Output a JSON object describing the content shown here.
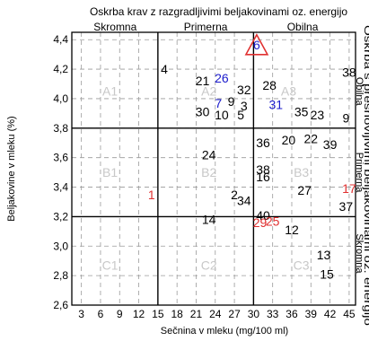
{
  "chart_data": {
    "type": "scatter",
    "title": "Oskrba krav z razgradljivimi beljakovinami oz. energijo",
    "xlabel": "Sečnina v mleku (mg/100 ml)",
    "ylabel": "Beljakovine v mleku (%)",
    "right_label": "Oskrba s presnovljivimi beljakovinami oz. energijo",
    "xlim": [
      1.5,
      46
    ],
    "ylim": [
      2.6,
      4.45
    ],
    "x_ticks": [
      "3",
      "6",
      "9",
      "12",
      "15",
      "18",
      "21",
      "24",
      "27",
      "30",
      "33",
      "36",
      "39",
      "42",
      "45"
    ],
    "y_ticks": [
      "2,6",
      "2,8",
      "3,0",
      "3,2",
      "3,4",
      "3,6",
      "3,8",
      "4,0",
      "4,2",
      "4,4"
    ],
    "column_headers": [
      "Skromna",
      "Primerna",
      "Obilna"
    ],
    "row_headers": [
      "Obilna",
      "Primerna",
      "Skromna"
    ],
    "x_dividers": [
      15,
      30
    ],
    "y_dividers": [
      3.2,
      3.8
    ],
    "zones": [
      {
        "label": "A1",
        "x": 7.5,
        "y": 4.05
      },
      {
        "label": "A2",
        "x": 23,
        "y": 4.05
      },
      {
        "label": "A3",
        "x": 35.5,
        "y": 4.05
      },
      {
        "label": "B1",
        "x": 7.5,
        "y": 3.5
      },
      {
        "label": "B2",
        "x": 23,
        "y": 3.5
      },
      {
        "label": "B3",
        "x": 37.5,
        "y": 3.5
      },
      {
        "label": "C1",
        "x": 7.5,
        "y": 2.87
      },
      {
        "label": "C2",
        "x": 23,
        "y": 2.87
      },
      {
        "label": "C3",
        "x": 37.5,
        "y": 2.87
      }
    ],
    "points": [
      {
        "label": "4",
        "x": 16,
        "y": 4.2,
        "color": "#000000"
      },
      {
        "label": "21",
        "x": 22,
        "y": 4.12,
        "color": "#000000"
      },
      {
        "label": "26",
        "x": 25,
        "y": 4.14,
        "color": "#1a1acc"
      },
      {
        "label": "32",
        "x": 28.5,
        "y": 4.06,
        "color": "#000000"
      },
      {
        "label": "28",
        "x": 32.5,
        "y": 4.09,
        "color": "#000000"
      },
      {
        "label": "38",
        "x": 45,
        "y": 4.18,
        "color": "#000000"
      },
      {
        "label": "7",
        "x": 24.5,
        "y": 3.97,
        "color": "#1a1acc"
      },
      {
        "label": "9",
        "x": 26.5,
        "y": 3.98,
        "color": "#000000"
      },
      {
        "label": "3",
        "x": 28.5,
        "y": 3.95,
        "color": "#000000"
      },
      {
        "label": "31",
        "x": 33.5,
        "y": 3.96,
        "color": "#1a1acc"
      },
      {
        "label": "35",
        "x": 37.5,
        "y": 3.91,
        "color": "#000000"
      },
      {
        "label": "23",
        "x": 40,
        "y": 3.89,
        "color": "#000000"
      },
      {
        "label": "9",
        "x": 44.5,
        "y": 3.87,
        "color": "#000000"
      },
      {
        "label": "30",
        "x": 22,
        "y": 3.91,
        "color": "#000000"
      },
      {
        "label": "10",
        "x": 25,
        "y": 3.89,
        "color": "#000000"
      },
      {
        "label": "5",
        "x": 28,
        "y": 3.89,
        "color": "#000000"
      },
      {
        "label": "36",
        "x": 31.5,
        "y": 3.7,
        "color": "#000000"
      },
      {
        "label": "20",
        "x": 35.5,
        "y": 3.72,
        "color": "#000000"
      },
      {
        "label": "22",
        "x": 39,
        "y": 3.73,
        "color": "#000000"
      },
      {
        "label": "39",
        "x": 42,
        "y": 3.69,
        "color": "#000000"
      },
      {
        "label": "24",
        "x": 23,
        "y": 3.62,
        "color": "#000000"
      },
      {
        "label": "38",
        "x": 31.5,
        "y": 3.52,
        "color": "#000000"
      },
      {
        "label": "16",
        "x": 31.5,
        "y": 3.47,
        "color": "#000000"
      },
      {
        "label": "2",
        "x": 27,
        "y": 3.35,
        "color": "#000000"
      },
      {
        "label": "34",
        "x": 28.5,
        "y": 3.31,
        "color": "#000000"
      },
      {
        "label": "27",
        "x": 38,
        "y": 3.38,
        "color": "#000000"
      },
      {
        "label": "17",
        "x": 45,
        "y": 3.39,
        "color": "#e03030"
      },
      {
        "label": "37",
        "x": 44.5,
        "y": 3.27,
        "color": "#000000"
      },
      {
        "label": "1",
        "x": 14,
        "y": 3.35,
        "color": "#e03030"
      },
      {
        "label": "14",
        "x": 23,
        "y": 3.18,
        "color": "#000000"
      },
      {
        "label": "40",
        "x": 31.5,
        "y": 3.21,
        "color": "#000000"
      },
      {
        "label": "29",
        "x": 31,
        "y": 3.16,
        "color": "#e03030"
      },
      {
        "label": "25",
        "x": 33,
        "y": 3.17,
        "color": "#e03030"
      },
      {
        "label": "12",
        "x": 36,
        "y": 3.11,
        "color": "#000000"
      },
      {
        "label": "13",
        "x": 41,
        "y": 2.94,
        "color": "#000000"
      },
      {
        "label": "15",
        "x": 41.5,
        "y": 2.81,
        "color": "#000000"
      }
    ],
    "marker": {
      "label": "6",
      "x": 30.5,
      "y": 4.36,
      "color": "#1a1acc",
      "border": "#e03030"
    }
  }
}
